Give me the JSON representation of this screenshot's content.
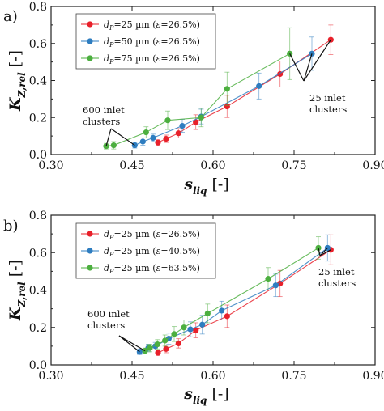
{
  "chart_data": [
    {
      "type": "line",
      "panel_label": "a)",
      "xlabel": "s",
      "xlabel_sub": "liq",
      "xlabel_unit": "[-]",
      "ylabel": "K",
      "ylabel_sub": "Z,rel",
      "ylabel_unit": "[-]",
      "xlim": [
        0.3,
        0.9
      ],
      "ylim": [
        0.0,
        0.8
      ],
      "x_ticks": [
        "0.30",
        "0.45",
        "0.60",
        "0.75",
        "0.90"
      ],
      "y_ticks": [
        "0.0",
        "0.2",
        "0.4",
        "0.6",
        "0.8"
      ],
      "legend_position": "top-left",
      "series": [
        {
          "name": "d_P=25 µm (ε=26.5%)",
          "label_sym": "d",
          "label_sub": "P",
          "label_rest": "=25 µm (",
          "label_eps": "ε",
          "label_tail": "=26.5%)",
          "color": "#e8202a",
          "x": [
            0.498,
            0.513,
            0.536,
            0.568,
            0.626,
            0.724,
            0.818
          ],
          "y": [
            0.065,
            0.085,
            0.115,
            0.175,
            0.26,
            0.435,
            0.62
          ],
          "err": [
            0.015,
            0.02,
            0.025,
            0.04,
            0.06,
            0.07,
            0.08
          ]
        },
        {
          "name": "d_P=50 µm (ε=26.5%)",
          "label_sym": "d",
          "label_sub": "P",
          "label_rest": "=50 µm (",
          "label_eps": "ε",
          "label_tail": "=26.5%)",
          "color": "#2e7dc0",
          "x": [
            0.455,
            0.47,
            0.489,
            0.543,
            0.578,
            0.685,
            0.783
          ],
          "y": [
            0.05,
            0.07,
            0.09,
            0.155,
            0.205,
            0.37,
            0.545
          ],
          "err": [
            0.015,
            0.02,
            0.02,
            0.035,
            0.04,
            0.07,
            0.09
          ]
        },
        {
          "name": "d_P=75 µm (ε=26.5%)",
          "label_sym": "d",
          "label_sub": "P",
          "label_rest": "=75 µm (",
          "label_eps": "ε",
          "label_tail": "=26.5%)",
          "color": "#4caf3f",
          "x": [
            0.402,
            0.416,
            0.476,
            0.516,
            0.578,
            0.626,
            0.742
          ],
          "y": [
            0.045,
            0.05,
            0.12,
            0.185,
            0.2,
            0.355,
            0.545
          ],
          "err": [
            0.015,
            0.02,
            0.03,
            0.05,
            0.05,
            0.09,
            0.14
          ]
        }
      ],
      "annotations": [
        {
          "text": [
            "600 inlet",
            "clusters"
          ]
        },
        {
          "text": [
            "25 inlet",
            "clusters"
          ]
        }
      ]
    },
    {
      "type": "line",
      "panel_label": "b)",
      "xlabel": "s",
      "xlabel_sub": "liq",
      "xlabel_unit": "[-]",
      "ylabel": "K",
      "ylabel_sub": "Z,rel",
      "ylabel_unit": "[-]",
      "xlim": [
        0.3,
        0.9
      ],
      "ylim": [
        0.0,
        0.8
      ],
      "x_ticks": [
        "0.30",
        "0.45",
        "0.60",
        "0.75",
        "0.90"
      ],
      "y_ticks": [
        "0.0",
        "0.2",
        "0.4",
        "0.6",
        "0.8"
      ],
      "legend_position": "top-left",
      "series": [
        {
          "name": "d_P=25 µm (ε=26.5%)",
          "label_sym": "d",
          "label_sub": "P",
          "label_rest": "=25 µm (",
          "label_eps": "ε",
          "label_tail": "=26.5%)",
          "color": "#e8202a",
          "x": [
            0.498,
            0.513,
            0.536,
            0.568,
            0.626,
            0.724,
            0.818
          ],
          "y": [
            0.065,
            0.085,
            0.115,
            0.185,
            0.26,
            0.435,
            0.615
          ],
          "err": [
            0.015,
            0.02,
            0.025,
            0.04,
            0.06,
            0.07,
            0.08
          ]
        },
        {
          "name": "d_P=25 µm (ε=40.5%)",
          "label_sym": "d",
          "label_sub": "P",
          "label_rest": "=25 µm (",
          "label_eps": "ε",
          "label_tail": "=40.5%)",
          "color": "#2e7dc0",
          "x": [
            0.464,
            0.48,
            0.493,
            0.518,
            0.558,
            0.58,
            0.616,
            0.716,
            0.812
          ],
          "y": [
            0.07,
            0.09,
            0.1,
            0.14,
            0.19,
            0.215,
            0.29,
            0.425,
            0.625
          ],
          "err": [
            0.015,
            0.02,
            0.02,
            0.03,
            0.04,
            0.05,
            0.05,
            0.06,
            0.07
          ]
        },
        {
          "name": "d_P=25 µm (ε=63.5%)",
          "label_sym": "d",
          "label_sub": "P",
          "label_rest": "=25 µm (",
          "label_eps": "ε",
          "label_tail": "=63.5%)",
          "color": "#4caf3f",
          "x": [
            0.474,
            0.483,
            0.497,
            0.511,
            0.528,
            0.546,
            0.59,
            0.702,
            0.795
          ],
          "y": [
            0.075,
            0.09,
            0.11,
            0.13,
            0.165,
            0.2,
            0.275,
            0.46,
            0.625
          ],
          "err": [
            0.015,
            0.02,
            0.025,
            0.03,
            0.04,
            0.04,
            0.05,
            0.06,
            0.06
          ]
        }
      ],
      "annotations": [
        {
          "text": [
            "600 inlet",
            "clusters"
          ]
        },
        {
          "text": [
            "25 inlet",
            "clusters"
          ]
        }
      ]
    }
  ]
}
